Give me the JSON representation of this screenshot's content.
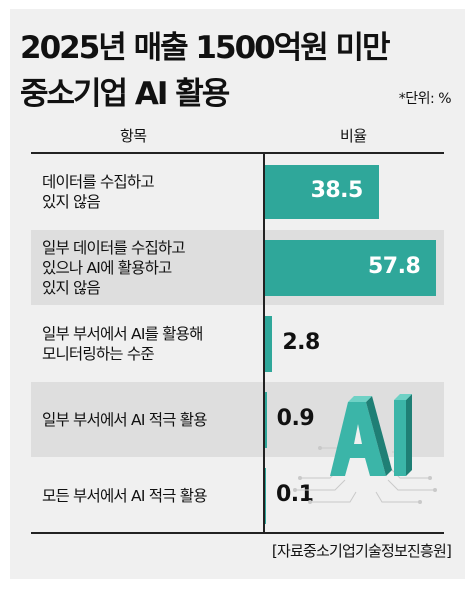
{
  "title_line1": "2025년 매출 1500억원 미만",
  "title_line2": "중소기업 AI 활용",
  "unit_note": "*단위: %",
  "header": {
    "label": "항목",
    "value": "비율"
  },
  "source": "[자료중소기업기술정보진흥원]",
  "colors": {
    "bar": "#2fa79a",
    "shaded_row": "#dedede",
    "panel": "#f0f0f0"
  },
  "chart_data": {
    "type": "bar",
    "orientation": "horizontal",
    "categories": [
      "데이터를 수집하고\n있지 않음",
      "일부 데이터를 수집하고\n있으나 AI에 활용하고\n있지 않음",
      "일부 부서에서 AI를 활용해\n모니터링하는 수준",
      "일부 부서에서 AI 적극 활용",
      "모든 부서에서 AI 적극 활용"
    ],
    "values": [
      38.5,
      57.8,
      2.8,
      0.9,
      0.1
    ],
    "value_labels": [
      "38.5",
      "57.8",
      "2.8",
      "0.9",
      "0.1"
    ],
    "xlim": [
      0,
      57.8
    ],
    "grid": false,
    "legend": "none"
  }
}
